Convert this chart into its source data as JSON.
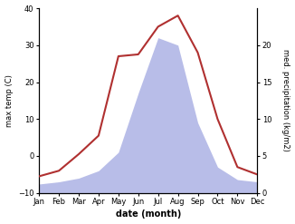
{
  "months": [
    1,
    2,
    3,
    4,
    5,
    6,
    7,
    8,
    9,
    10,
    11,
    12
  ],
  "month_labels": [
    "Jan",
    "Feb",
    "Mar",
    "Apr",
    "May",
    "Jun",
    "Jul",
    "Aug",
    "Sep",
    "Oct",
    "Nov",
    "Dec"
  ],
  "temperature": [
    -5.5,
    -4.0,
    0.5,
    5.5,
    27.0,
    27.5,
    35.0,
    38.0,
    28.0,
    10.0,
    -3.0,
    -5.0
  ],
  "precipitation": [
    1.2,
    1.5,
    2.0,
    3.0,
    5.5,
    13.5,
    21.0,
    20.0,
    9.5,
    3.5,
    1.8,
    1.5
  ],
  "temp_color": "#b03030",
  "precip_color": "#b8bde8",
  "temp_ylim": [
    -10,
    40
  ],
  "precip_ylim": [
    0,
    25
  ],
  "temp_yticks": [
    -10,
    0,
    10,
    20,
    30,
    40
  ],
  "precip_yticks": [
    0,
    5,
    10,
    15,
    20
  ],
  "xlabel": "date (month)",
  "ylabel_left": "max temp (C)",
  "ylabel_right": "med. precipitation (kg/m2)",
  "bg_color": "#ffffff",
  "linewidth": 1.5,
  "figwidth": 3.26,
  "figheight": 2.47,
  "dpi": 100
}
